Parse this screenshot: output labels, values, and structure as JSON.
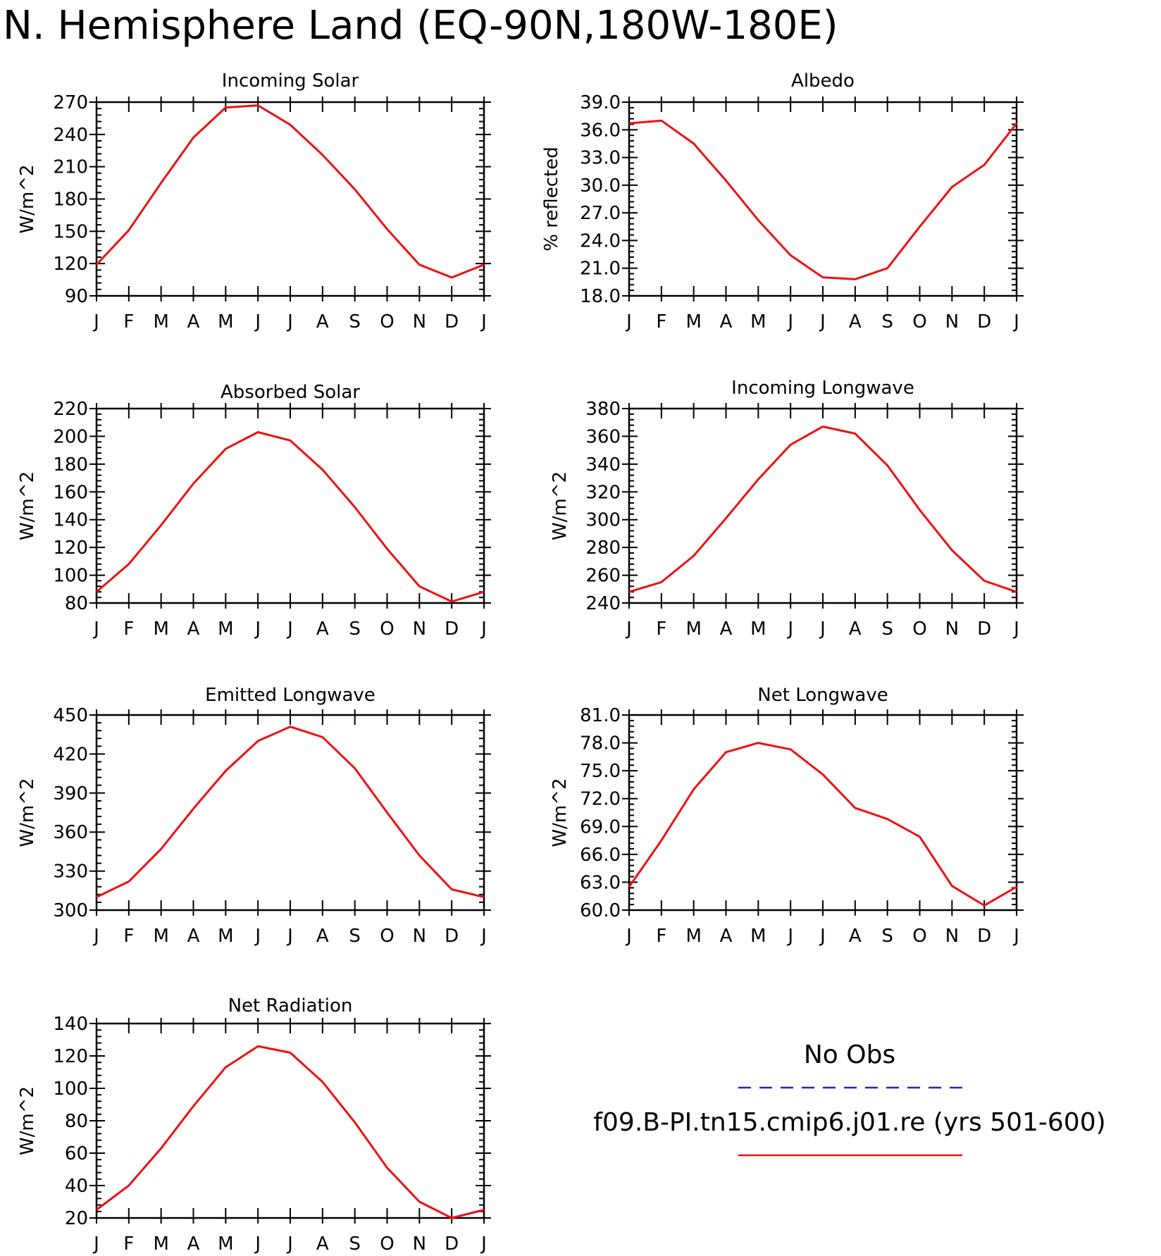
{
  "page_title": "N. Hemisphere Land (EQ-90N,180W-180E)",
  "colors": {
    "model": "#ee1111",
    "obs": "#2222dd"
  },
  "legend": {
    "obs_label": "No Obs",
    "model_label": "f09.B-PI.tn15.cmip6.j01.re (yrs 501-600)"
  },
  "chart_data": [
    {
      "type": "line",
      "title": "Incoming Solar",
      "ylabel": "W/m^2",
      "x": [
        "J",
        "F",
        "M",
        "A",
        "M",
        "J",
        "J",
        "A",
        "S",
        "O",
        "N",
        "D",
        "J"
      ],
      "ylim": [
        90,
        270
      ],
      "yticks": [
        "90",
        "120",
        "150",
        "180",
        "210",
        "240",
        "270"
      ],
      "series": [
        {
          "values": [
            119,
            151,
            195,
            237,
            265,
            267,
            249,
            221,
            189,
            152,
            119,
            107,
            119
          ]
        }
      ]
    },
    {
      "type": "line",
      "title": "Albedo",
      "ylabel": "% reflected",
      "x": [
        "J",
        "F",
        "M",
        "A",
        "M",
        "J",
        "J",
        "A",
        "S",
        "O",
        "N",
        "D",
        "J"
      ],
      "ylim": [
        18,
        39
      ],
      "yticks": [
        "18.0",
        "21.0",
        "24.0",
        "27.0",
        "30.0",
        "33.0",
        "36.0",
        "39.0"
      ],
      "series": [
        {
          "values": [
            36.7,
            37.0,
            34.5,
            30.5,
            26.2,
            22.4,
            20.0,
            19.8,
            21.0,
            25.5,
            29.8,
            32.2,
            36.7
          ]
        }
      ]
    },
    {
      "type": "line",
      "title": "Absorbed Solar",
      "ylabel": "W/m^2",
      "x": [
        "J",
        "F",
        "M",
        "A",
        "M",
        "J",
        "J",
        "A",
        "S",
        "O",
        "N",
        "D",
        "J"
      ],
      "ylim": [
        80,
        220
      ],
      "yticks": [
        "80",
        "100",
        "120",
        "140",
        "160",
        "180",
        "200",
        "220"
      ],
      "series": [
        {
          "values": [
            88,
            108,
            136,
            166,
            191,
            203,
            197,
            176,
            149,
            119,
            92,
            81,
            88
          ]
        }
      ]
    },
    {
      "type": "line",
      "title": "Incoming Longwave",
      "ylabel": "W/m^2",
      "x": [
        "J",
        "F",
        "M",
        "A",
        "M",
        "J",
        "J",
        "A",
        "S",
        "O",
        "N",
        "D",
        "J"
      ],
      "ylim": [
        240,
        380
      ],
      "yticks": [
        "240",
        "260",
        "280",
        "300",
        "320",
        "340",
        "360",
        "380"
      ],
      "series": [
        {
          "values": [
            248,
            255,
            274,
            301,
            329,
            354,
            367,
            362,
            339,
            307,
            278,
            256,
            248
          ]
        }
      ]
    },
    {
      "type": "line",
      "title": "Emitted Longwave",
      "ylabel": "W/m^2",
      "x": [
        "J",
        "F",
        "M",
        "A",
        "M",
        "J",
        "J",
        "A",
        "S",
        "O",
        "N",
        "D",
        "J"
      ],
      "ylim": [
        300,
        450
      ],
      "yticks": [
        "300",
        "330",
        "360",
        "390",
        "420",
        "450"
      ],
      "series": [
        {
          "values": [
            310,
            322,
            347,
            378,
            407,
            430,
            441,
            433,
            409,
            375,
            342,
            316,
            310
          ]
        }
      ]
    },
    {
      "type": "line",
      "title": "Net Longwave",
      "ylabel": "W/m^2",
      "x": [
        "J",
        "F",
        "M",
        "A",
        "M",
        "J",
        "J",
        "A",
        "S",
        "O",
        "N",
        "D",
        "J"
      ],
      "ylim": [
        60,
        81
      ],
      "yticks": [
        "60.0",
        "63.0",
        "66.0",
        "69.0",
        "72.0",
        "75.0",
        "78.0",
        "81.0"
      ],
      "series": [
        {
          "values": [
            62.5,
            67.5,
            73.0,
            77.0,
            78.0,
            77.3,
            74.6,
            71.0,
            69.8,
            67.9,
            62.6,
            60.5,
            62.5
          ]
        }
      ]
    },
    {
      "type": "line",
      "title": "Net Radiation",
      "ylabel": "W/m^2",
      "x": [
        "J",
        "F",
        "M",
        "A",
        "M",
        "J",
        "J",
        "A",
        "S",
        "O",
        "N",
        "D",
        "J"
      ],
      "ylim": [
        20,
        140
      ],
      "yticks": [
        "20",
        "40",
        "60",
        "80",
        "100",
        "120",
        "140"
      ],
      "series": [
        {
          "values": [
            25,
            40,
            63,
            89,
            113,
            126,
            122,
            104,
            79,
            51,
            30,
            20,
            25
          ]
        }
      ]
    }
  ]
}
